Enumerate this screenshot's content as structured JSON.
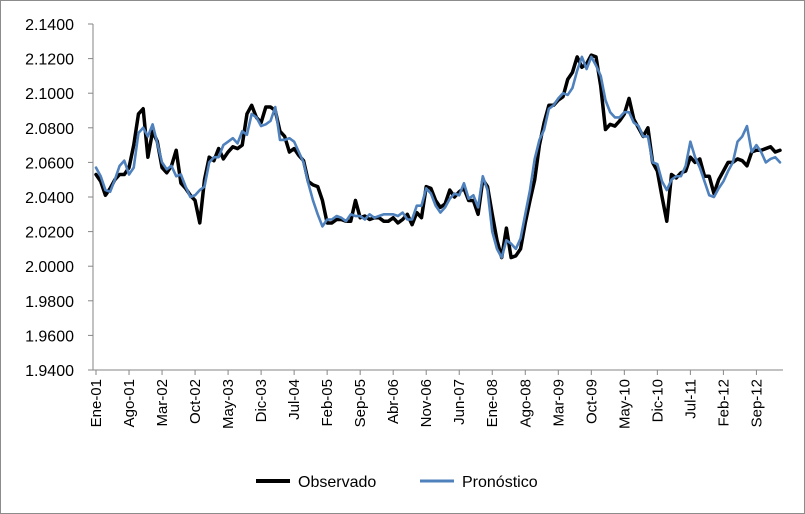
{
  "chart_data": {
    "type": "line",
    "title": "",
    "xlabel": "",
    "ylabel": "",
    "ylim": [
      1.94,
      2.14
    ],
    "yticks": [
      "1.9400",
      "1.9600",
      "1.9800",
      "2.0000",
      "2.0200",
      "2.0400",
      "2.0600",
      "2.0800",
      "2.1000",
      "2.1200",
      "2.1400"
    ],
    "ytick_values": [
      1.94,
      1.96,
      1.98,
      2.0,
      2.02,
      2.04,
      2.06,
      2.08,
      2.1,
      2.12,
      2.14
    ],
    "grid": false,
    "legend": "bottom",
    "x_tick_labels": [
      "Ene-01",
      "Ago-01",
      "Mar-02",
      "Oct-02",
      "May-03",
      "Dic-03",
      "Jul-04",
      "Feb-05",
      "Sep-05",
      "Abr-06",
      "Nov-06",
      "Jun-07",
      "Ene-08",
      "Ago-08",
      "Mar-09",
      "Oct-09",
      "May-10",
      "Dic-10",
      "Jul-11",
      "Feb-12",
      "Sep-12"
    ],
    "x_tick_every_months": 7,
    "n_months": 146,
    "series": [
      {
        "name": "Observado",
        "color": "#000000",
        "values": [
          2.053,
          2.049,
          2.041,
          2.045,
          2.05,
          2.053,
          2.053,
          2.057,
          2.07,
          2.088,
          2.091,
          2.063,
          2.078,
          2.072,
          2.057,
          2.054,
          2.058,
          2.067,
          2.048,
          2.045,
          2.041,
          2.038,
          2.025,
          2.05,
          2.063,
          2.061,
          2.068,
          2.062,
          2.066,
          2.069,
          2.068,
          2.07,
          2.088,
          2.093,
          2.086,
          2.083,
          2.092,
          2.092,
          2.09,
          2.078,
          2.075,
          2.066,
          2.068,
          2.064,
          2.061,
          2.049,
          2.047,
          2.046,
          2.038,
          2.025,
          2.025,
          2.027,
          2.027,
          2.026,
          2.026,
          2.038,
          2.028,
          2.029,
          2.027,
          2.028,
          2.028,
          2.026,
          2.026,
          2.028,
          2.025,
          2.027,
          2.03,
          2.024,
          2.031,
          2.028,
          2.046,
          2.045,
          2.038,
          2.034,
          2.036,
          2.044,
          2.04,
          2.043,
          2.045,
          2.038,
          2.038,
          2.03,
          2.05,
          2.046,
          2.03,
          2.015,
          2.005,
          2.022,
          2.005,
          2.006,
          2.01,
          2.025,
          2.038,
          2.05,
          2.07,
          2.083,
          2.093,
          2.093,
          2.096,
          2.098,
          2.108,
          2.112,
          2.121,
          2.115,
          2.117,
          2.122,
          2.121,
          2.104,
          2.079,
          2.082,
          2.081,
          2.084,
          2.088,
          2.097,
          2.085,
          2.08,
          2.075,
          2.08,
          2.06,
          2.055,
          2.04,
          2.026,
          2.053,
          2.051,
          2.054,
          2.055,
          2.063,
          2.06,
          2.062,
          2.052,
          2.052,
          2.042,
          2.05,
          2.055,
          2.06,
          2.06,
          2.062,
          2.061,
          2.058,
          2.066,
          2.067,
          2.067,
          2.068,
          2.069,
          2.066,
          2.067
        ]
      },
      {
        "name": "Pronóstico",
        "color": "#4f81bd",
        "values": [
          2.057,
          2.052,
          2.044,
          2.043,
          2.05,
          2.058,
          2.061,
          2.053,
          2.057,
          2.077,
          2.08,
          2.075,
          2.082,
          2.071,
          2.06,
          2.056,
          2.058,
          2.052,
          2.053,
          2.046,
          2.04,
          2.041,
          2.044,
          2.046,
          2.06,
          2.063,
          2.063,
          2.07,
          2.072,
          2.074,
          2.071,
          2.078,
          2.076,
          2.088,
          2.086,
          2.081,
          2.082,
          2.084,
          2.092,
          2.073,
          2.073,
          2.074,
          2.072,
          2.066,
          2.06,
          2.048,
          2.038,
          2.03,
          2.023,
          2.027,
          2.027,
          2.029,
          2.028,
          2.026,
          2.03,
          2.029,
          2.029,
          2.027,
          2.03,
          2.028,
          2.029,
          2.03,
          2.03,
          2.03,
          2.029,
          2.031,
          2.027,
          2.027,
          2.035,
          2.035,
          2.045,
          2.042,
          2.035,
          2.031,
          2.034,
          2.039,
          2.042,
          2.041,
          2.048,
          2.039,
          2.041,
          2.034,
          2.052,
          2.044,
          2.02,
          2.01,
          2.005,
          2.015,
          2.013,
          2.01,
          2.016,
          2.03,
          2.044,
          2.062,
          2.073,
          2.079,
          2.091,
          2.093,
          2.097,
          2.1,
          2.099,
          2.103,
          2.113,
          2.121,
          2.114,
          2.121,
          2.116,
          2.11,
          2.096,
          2.089,
          2.086,
          2.086,
          2.089,
          2.089,
          2.083,
          2.081,
          2.075,
          2.075,
          2.06,
          2.059,
          2.049,
          2.044,
          2.05,
          2.052,
          2.052,
          2.058,
          2.072,
          2.063,
          2.057,
          2.049,
          2.041,
          2.04,
          2.045,
          2.049,
          2.055,
          2.06,
          2.072,
          2.075,
          2.081,
          2.066,
          2.07,
          2.066,
          2.06,
          2.062,
          2.063,
          2.06
        ]
      }
    ]
  }
}
